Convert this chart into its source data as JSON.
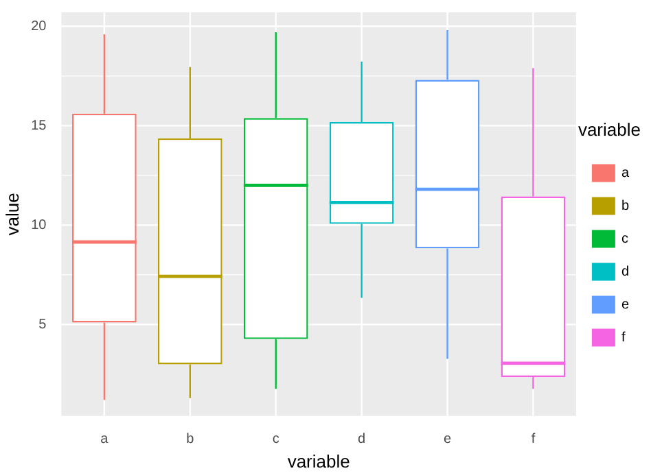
{
  "chart_data": {
    "type": "box",
    "xlabel": "variable",
    "ylabel": "value",
    "legend_title": "variable",
    "legend": "right",
    "grid": true,
    "categories": [
      "a",
      "b",
      "c",
      "d",
      "e",
      "f"
    ],
    "series": [
      {
        "name": "a",
        "color": "#f8766d",
        "boxes": [
          {
            "low": 1.2,
            "q1": 5.1,
            "median": 9.15,
            "q3": 15.6,
            "high": 19.6
          },
          null,
          null,
          null,
          null,
          null
        ]
      },
      {
        "name": "b",
        "color": "#b79f00",
        "boxes": [
          null,
          {
            "low": 1.3,
            "q1": 3.0,
            "median": 7.42,
            "q3": 14.36,
            "high": 17.95
          },
          null,
          null,
          null,
          null
        ]
      },
      {
        "name": "c",
        "color": "#00ba38",
        "boxes": [
          null,
          null,
          {
            "low": 1.76,
            "q1": 4.27,
            "median": 12.0,
            "q3": 15.38,
            "high": 19.7
          },
          null,
          null,
          null
        ]
      },
      {
        "name": "d",
        "color": "#00bfc4",
        "boxes": [
          null,
          null,
          null,
          {
            "low": 6.34,
            "q1": 10.06,
            "median": 11.14,
            "q3": 15.18,
            "high": 18.23
          },
          null,
          null
        ]
      },
      {
        "name": "e",
        "color": "#619cff",
        "boxes": [
          null,
          null,
          null,
          null,
          {
            "low": 3.27,
            "q1": 8.83,
            "median": 11.8,
            "q3": 17.3,
            "high": 19.8
          },
          null
        ]
      },
      {
        "name": "f",
        "color": "#f564e3",
        "boxes": [
          null,
          null,
          null,
          null,
          null,
          {
            "low": 1.76,
            "q1": 2.36,
            "median": 3.05,
            "q3": 11.44,
            "high": 17.9
          }
        ]
      }
    ],
    "ylim": [
      0.4,
      20.7
    ],
    "yticks": [
      5,
      10,
      15,
      20
    ]
  }
}
